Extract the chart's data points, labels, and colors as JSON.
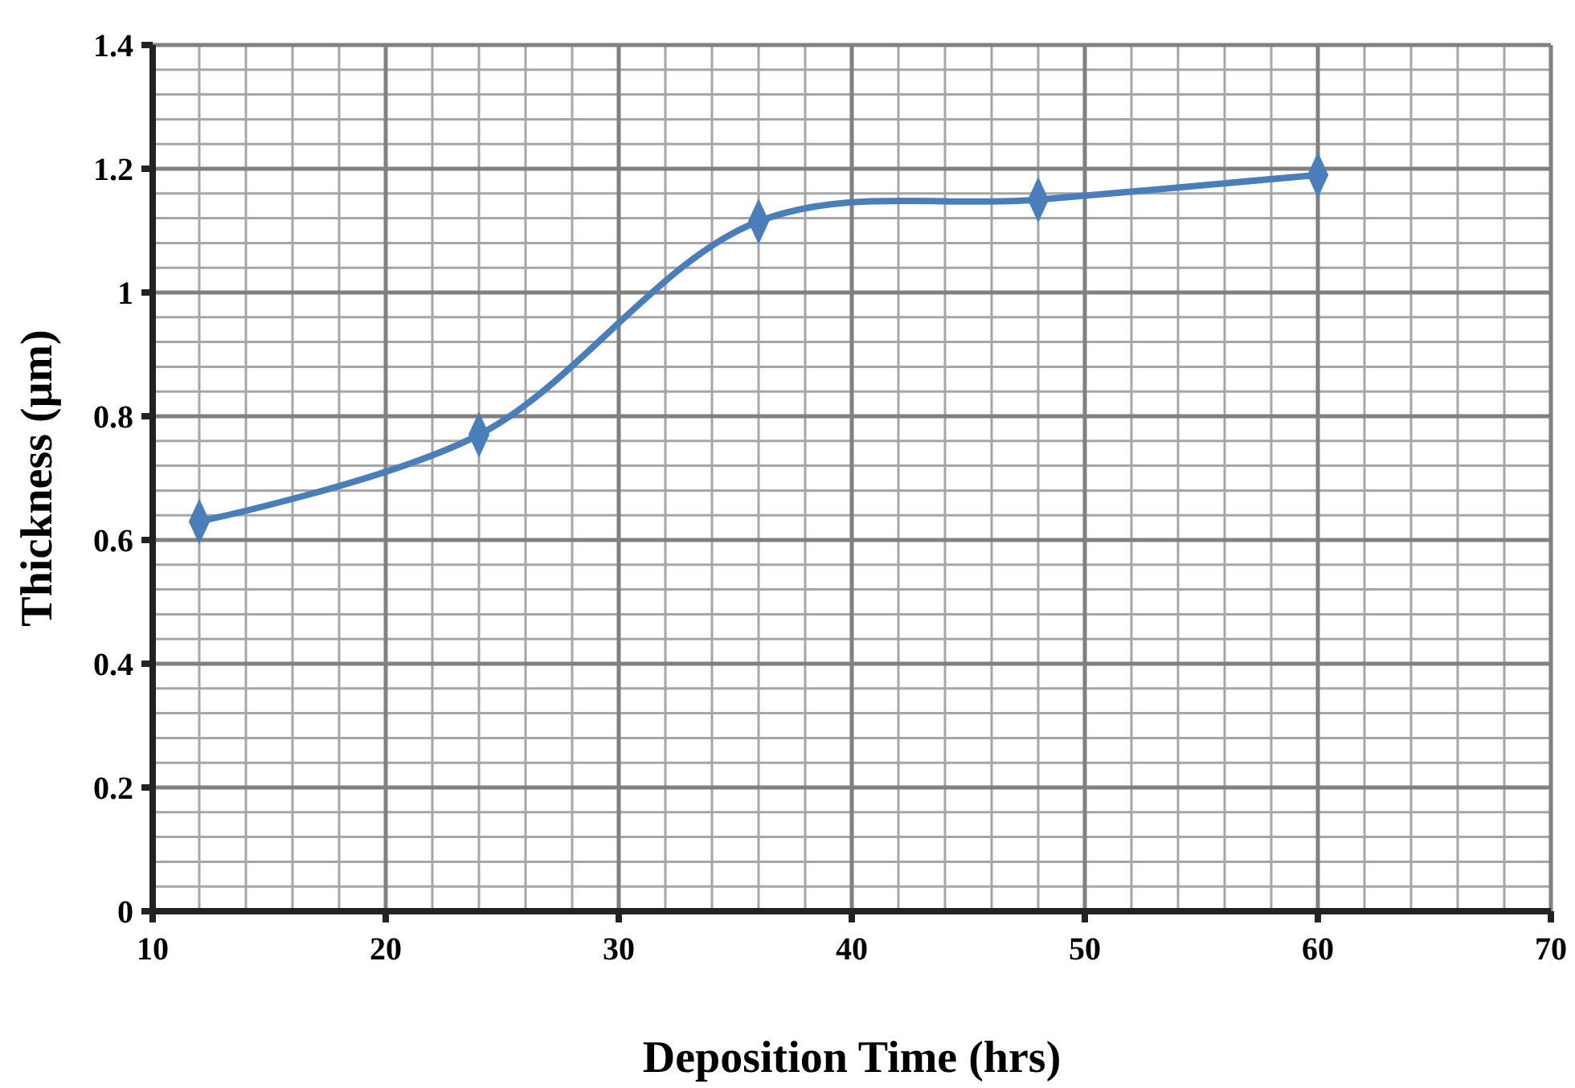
{
  "chart_data": {
    "type": "line",
    "xlabel": "Deposition Time (hrs)",
    "ylabel": "Thickness (μm)",
    "x": [
      12,
      24,
      36,
      48,
      60
    ],
    "series": [
      {
        "color": "#4a7ebb",
        "values": [
          0.63,
          0.77,
          1.115,
          1.15,
          1.19
        ]
      }
    ],
    "xlim": [
      10,
      70
    ],
    "xticks": [
      10,
      20,
      30,
      40,
      50,
      60,
      70
    ],
    "ylim": [
      0,
      1.4
    ],
    "yticks": [
      0,
      0.2,
      0.4,
      0.6,
      0.8,
      1,
      1.2,
      1.4
    ],
    "grid": true,
    "marker": "diamond",
    "line_style": "solid"
  }
}
